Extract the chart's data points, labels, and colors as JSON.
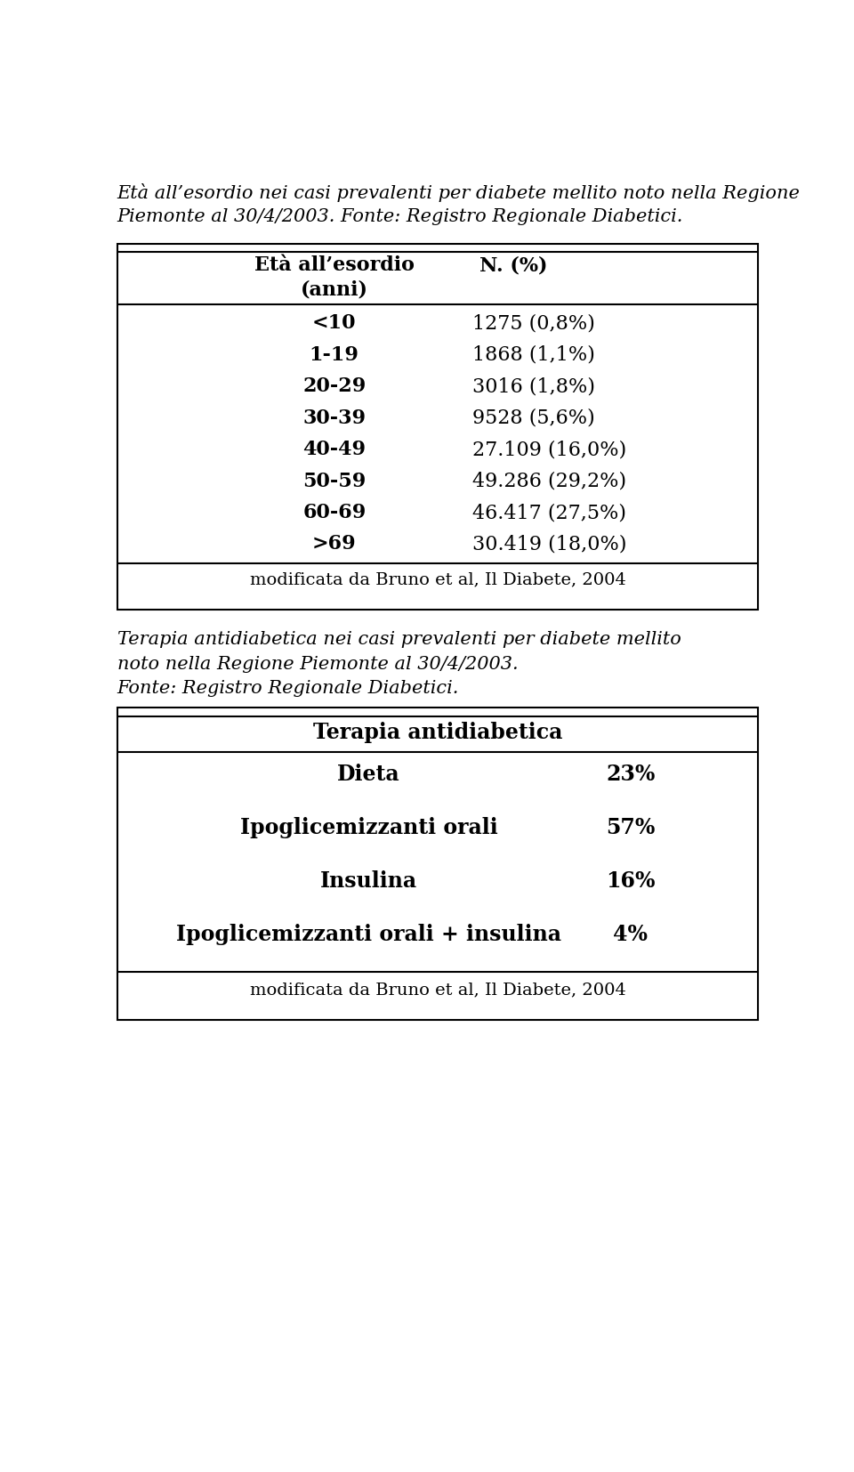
{
  "title1_line1": "Età all’esordio nei casi prevalenti per diabete mellito noto nella Regione",
  "title1_line2": "Piemonte al 30/4/2003. Fonte: Registro Regionale Diabetici.",
  "table1_header_col1": "Età all’esordio\n(anni)",
  "table1_header_col2": "N. (%)",
  "table1_rows": [
    [
      "<10",
      "1275 (0,8%)"
    ],
    [
      "1-19",
      "1868 (1,1%)"
    ],
    [
      "20-29",
      "3016 (1,8%)"
    ],
    [
      "30-39",
      "9528 (5,6%)"
    ],
    [
      "40-49",
      "27.109 (16,0%)"
    ],
    [
      "50-59",
      "49.286 (29,2%)"
    ],
    [
      "60-69",
      "46.417 (27,5%)"
    ],
    [
      ">69",
      "30.419 (18,0%)"
    ]
  ],
  "table1_footer": "modificata da Bruno et al, Il Diabete, 2004",
  "title2_line1": "Terapia antidiabetica nei casi prevalenti per diabete mellito",
  "title2_line2": "noto nella Regione Piemonte al 30/4/2003.",
  "title2_line3": "Fonte: Registro Regionale Diabetici.",
  "table2_header": "Terapia antidiabetica",
  "table2_rows": [
    [
      "Dieta",
      "23%"
    ],
    [
      "Ipoglicemizzanti orali",
      "57%"
    ],
    [
      "Insulina",
      "16%"
    ],
    [
      "Ipoglicemizzanti orali + insulina",
      "4%"
    ]
  ],
  "table2_footer": "modificata da Bruno et al, Il Diabete, 2004",
  "bg_color": "#ffffff",
  "text_color": "#000000",
  "border_color": "#000000",
  "font_size_title": 15,
  "font_size_table": 15,
  "font_size_footer": 14
}
